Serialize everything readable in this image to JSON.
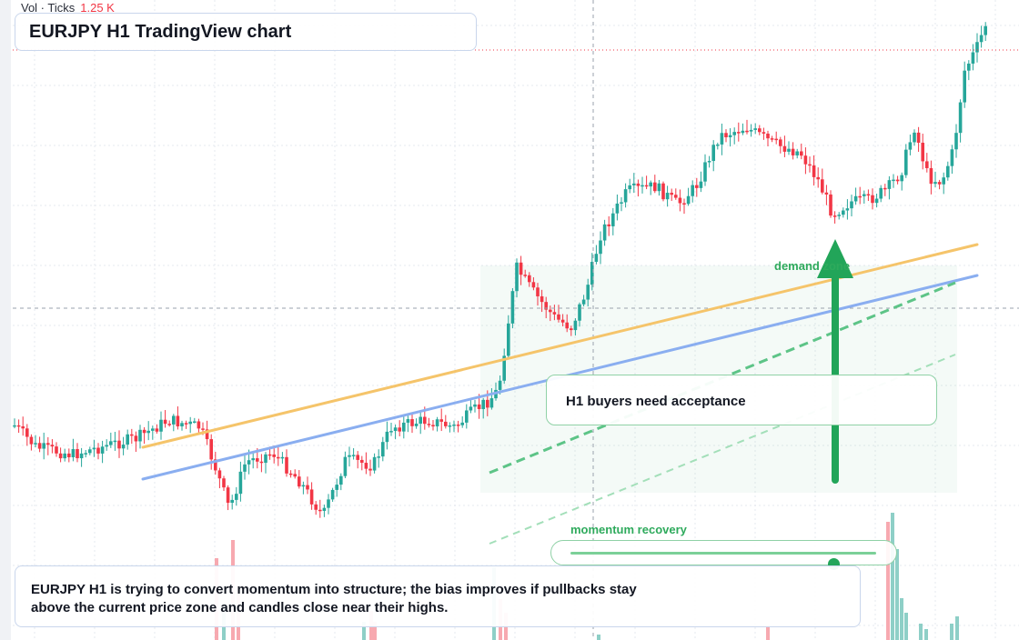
{
  "chart_header": {
    "volume_label": "Vol · Ticks",
    "volume_value": "1.25 K"
  },
  "title": "EURJPY H1 TradingView chart",
  "annotations": {
    "demand_zone_label": "demand zone",
    "note": "H1 buyers need acceptance",
    "momentum_label": "momentum recovery",
    "momentum_level": 0.86
  },
  "caption": {
    "line1": "EURJPY H1 is trying to convert momentum into structure; the bias improves if pullbacks stay",
    "line2": "above the current price zone and candles close near their highs."
  },
  "colors": {
    "bull": "#26a69a",
    "bear": "#f23645",
    "bull_volume": "#8ecfc7",
    "bear_volume": "#f7a9b0",
    "trendline_orange": "#f5c46a",
    "trendline_blue": "#8aaef0",
    "accent_green": "#22a559",
    "grid": "#e6e9ef"
  }
}
